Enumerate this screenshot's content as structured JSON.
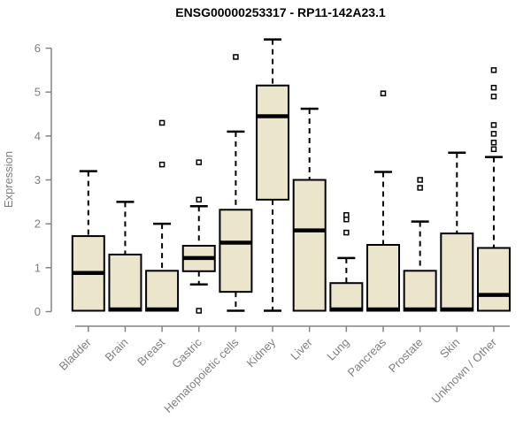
{
  "chart_data": {
    "type": "boxplot",
    "title": "ENSG00000253317 - RP11-142A23.1",
    "ylabel": "Expression",
    "xlabel": "",
    "ylim": [
      0,
      6
    ],
    "yticks": [
      0,
      1,
      2,
      3,
      4,
      5,
      6
    ],
    "ytick_labels": [
      "0",
      "1",
      "2",
      "3",
      "4",
      "5",
      "6"
    ],
    "grid": false,
    "legend": false,
    "categories": [
      "Bladder",
      "Brain",
      "Breast",
      "Gastric",
      "Hematopoietic cells",
      "Kidney",
      "Liver",
      "Lung",
      "Pancreas",
      "Prostate",
      "Skin",
      "Unknown / Other"
    ],
    "boxes": [
      {
        "category": "Bladder",
        "whisker_low": 0.02,
        "q1": 0.02,
        "median": 0.88,
        "q3": 1.72,
        "whisker_high": 3.2,
        "outliers": []
      },
      {
        "category": "Brain",
        "whisker_low": 0.02,
        "q1": 0.02,
        "median": 0.05,
        "q3": 1.3,
        "whisker_high": 2.5,
        "outliers": []
      },
      {
        "category": "Breast",
        "whisker_low": 0.02,
        "q1": 0.02,
        "median": 0.05,
        "q3": 0.93,
        "whisker_high": 2.0,
        "outliers": [
          3.35,
          4.3
        ]
      },
      {
        "category": "Gastric",
        "whisker_low": 0.62,
        "q1": 0.92,
        "median": 1.22,
        "q3": 1.5,
        "whisker_high": 2.4,
        "outliers": [
          0.02,
          2.55,
          3.4
        ]
      },
      {
        "category": "Hematopoietic cells",
        "whisker_low": 0.02,
        "q1": 0.45,
        "median": 1.57,
        "q3": 2.32,
        "whisker_high": 4.1,
        "outliers": [
          5.8
        ]
      },
      {
        "category": "Kidney",
        "whisker_low": 0.02,
        "q1": 2.55,
        "median": 4.45,
        "q3": 5.15,
        "whisker_high": 6.2,
        "outliers": []
      },
      {
        "category": "Liver",
        "whisker_low": 0.02,
        "q1": 0.02,
        "median": 1.85,
        "q3": 3.0,
        "whisker_high": 4.62,
        "outliers": []
      },
      {
        "category": "Lung",
        "whisker_low": 0.02,
        "q1": 0.02,
        "median": 0.05,
        "q3": 0.65,
        "whisker_high": 1.22,
        "outliers": [
          1.8,
          2.1,
          2.2
        ]
      },
      {
        "category": "Pancreas",
        "whisker_low": 0.02,
        "q1": 0.02,
        "median": 0.05,
        "q3": 1.52,
        "whisker_high": 3.18,
        "outliers": [
          4.97
        ]
      },
      {
        "category": "Prostate",
        "whisker_low": 0.02,
        "q1": 0.02,
        "median": 0.05,
        "q3": 0.93,
        "whisker_high": 2.05,
        "outliers": [
          2.82,
          3.0
        ]
      },
      {
        "category": "Skin",
        "whisker_low": 0.02,
        "q1": 0.02,
        "median": 0.05,
        "q3": 1.78,
        "whisker_high": 3.62,
        "outliers": []
      },
      {
        "category": "Unknown / Other",
        "whisker_low": 0.02,
        "q1": 0.02,
        "median": 0.38,
        "q3": 1.45,
        "whisker_high": 3.52,
        "outliers": [
          3.7,
          3.85,
          4.05,
          4.25,
          4.9,
          5.1,
          5.5
        ]
      }
    ],
    "colors": {
      "box_fill": "#ebe6cb",
      "box_border": "#000000",
      "median": "#000000",
      "whisker": "#000000",
      "outlier_border": "#000000",
      "outlier_fill": "#ffffff",
      "axis": "#848484",
      "axis_text": "#7f7f7f",
      "title": "#000000",
      "background": "#ffffff"
    }
  }
}
